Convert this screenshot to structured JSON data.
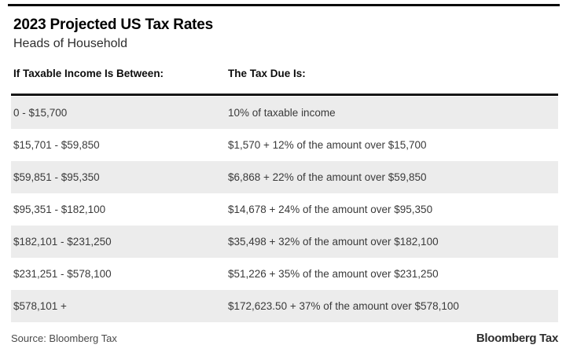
{
  "chart_data": {
    "type": "table",
    "title": "2023 Projected US Tax Rates",
    "subtitle": "Heads of Household",
    "columns": [
      "If Taxable Income Is Between:",
      "The Tax Due Is:"
    ],
    "rows": [
      [
        "0 - $15,700",
        "10% of taxable income"
      ],
      [
        "$15,701 - $59,850",
        "$1,570 + 12% of the amount over $15,700"
      ],
      [
        "$59,851 - $95,350",
        "$6,868 + 22% of the amount over $59,850"
      ],
      [
        "$95,351 - $182,100",
        "$14,678 + 24% of the amount over $95,350"
      ],
      [
        "$182,101 - $231,250",
        "$35,498 + 32% of the amount over $182,100"
      ],
      [
        "$231,251 - $578,100",
        "$51,226 + 35% of the amount over $231,250"
      ],
      [
        "$578,101 +",
        "$172,623.50 + 37% of the amount over $578,100"
      ]
    ],
    "source": "Source: Bloomberg Tax",
    "layout": {
      "striped_rows": "odd",
      "grid": "off",
      "header_rule": true,
      "legend": "none"
    }
  },
  "footer": {
    "source_label": "Source: Bloomberg Tax",
    "brand": "Bloomberg Tax"
  },
  "colors": {
    "stripe": "#ececec",
    "header_rule": "#161616",
    "top_rule": "#0a0a0a",
    "title_text": "#000000",
    "body_text": "#3a3a3a",
    "source_text": "#4a4a4a"
  }
}
